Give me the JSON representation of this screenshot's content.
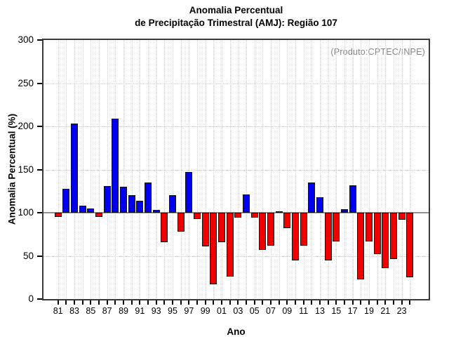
{
  "title": {
    "line1": "Anomalia Percentual",
    "line2": "de Precipitação Trimestral (AMJ): Região 107"
  },
  "watermark": "(Produto:CPTEC/INPE)",
  "y_axis": {
    "label": "Anomalia Percentual (%)",
    "tick_values": [
      0,
      50,
      100,
      150,
      200,
      250,
      300
    ]
  },
  "x_axis": {
    "label": "Ano",
    "tick_labels": [
      "81",
      "83",
      "85",
      "87",
      "89",
      "91",
      "93",
      "95",
      "97",
      "99",
      "01",
      "03",
      "05",
      "07",
      "09",
      "11",
      "13",
      "15",
      "17",
      "19",
      "21",
      "23"
    ]
  },
  "colors": {
    "above_baseline": "#0000ee",
    "below_baseline": "#ee0000",
    "baseline_line": "#919191",
    "grid": "#c9c9c9",
    "watermark_text": "#868686"
  },
  "chart_data": {
    "type": "bar",
    "title": "Anomalia Percentual de Precipitação Trimestral (AMJ): Região 107",
    "xlabel": "Ano",
    "ylabel": "Anomalia Percentual (%)",
    "ylim": [
      0,
      300
    ],
    "baseline": 100,
    "grid": "dotted, horizontal every 50, vertical every year",
    "legend_position": "none",
    "x": [
      1981,
      1982,
      1983,
      1984,
      1985,
      1986,
      1987,
      1988,
      1989,
      1990,
      1991,
      1992,
      1993,
      1994,
      1995,
      1996,
      1997,
      1998,
      1999,
      2000,
      2001,
      2002,
      2003,
      2004,
      2005,
      2006,
      2007,
      2008,
      2009,
      2010,
      2011,
      2012,
      2013,
      2014,
      2015,
      2016,
      2017,
      2018,
      2019,
      2020,
      2021,
      2022,
      2023,
      2024
    ],
    "values": [
      95,
      128,
      203,
      108,
      105,
      95,
      131,
      209,
      130,
      120,
      114,
      135,
      103,
      66,
      120,
      78,
      147,
      93,
      61,
      17,
      66,
      26,
      94,
      121,
      94,
      57,
      62,
      102,
      82,
      45,
      62,
      135,
      118,
      45,
      67,
      104,
      132,
      23,
      67,
      52,
      36,
      46,
      92,
      25
    ],
    "color_rule": "value >= 100 blue (#0000ee), value < 100 red (#ee0000), bars drawn from 100 baseline"
  }
}
